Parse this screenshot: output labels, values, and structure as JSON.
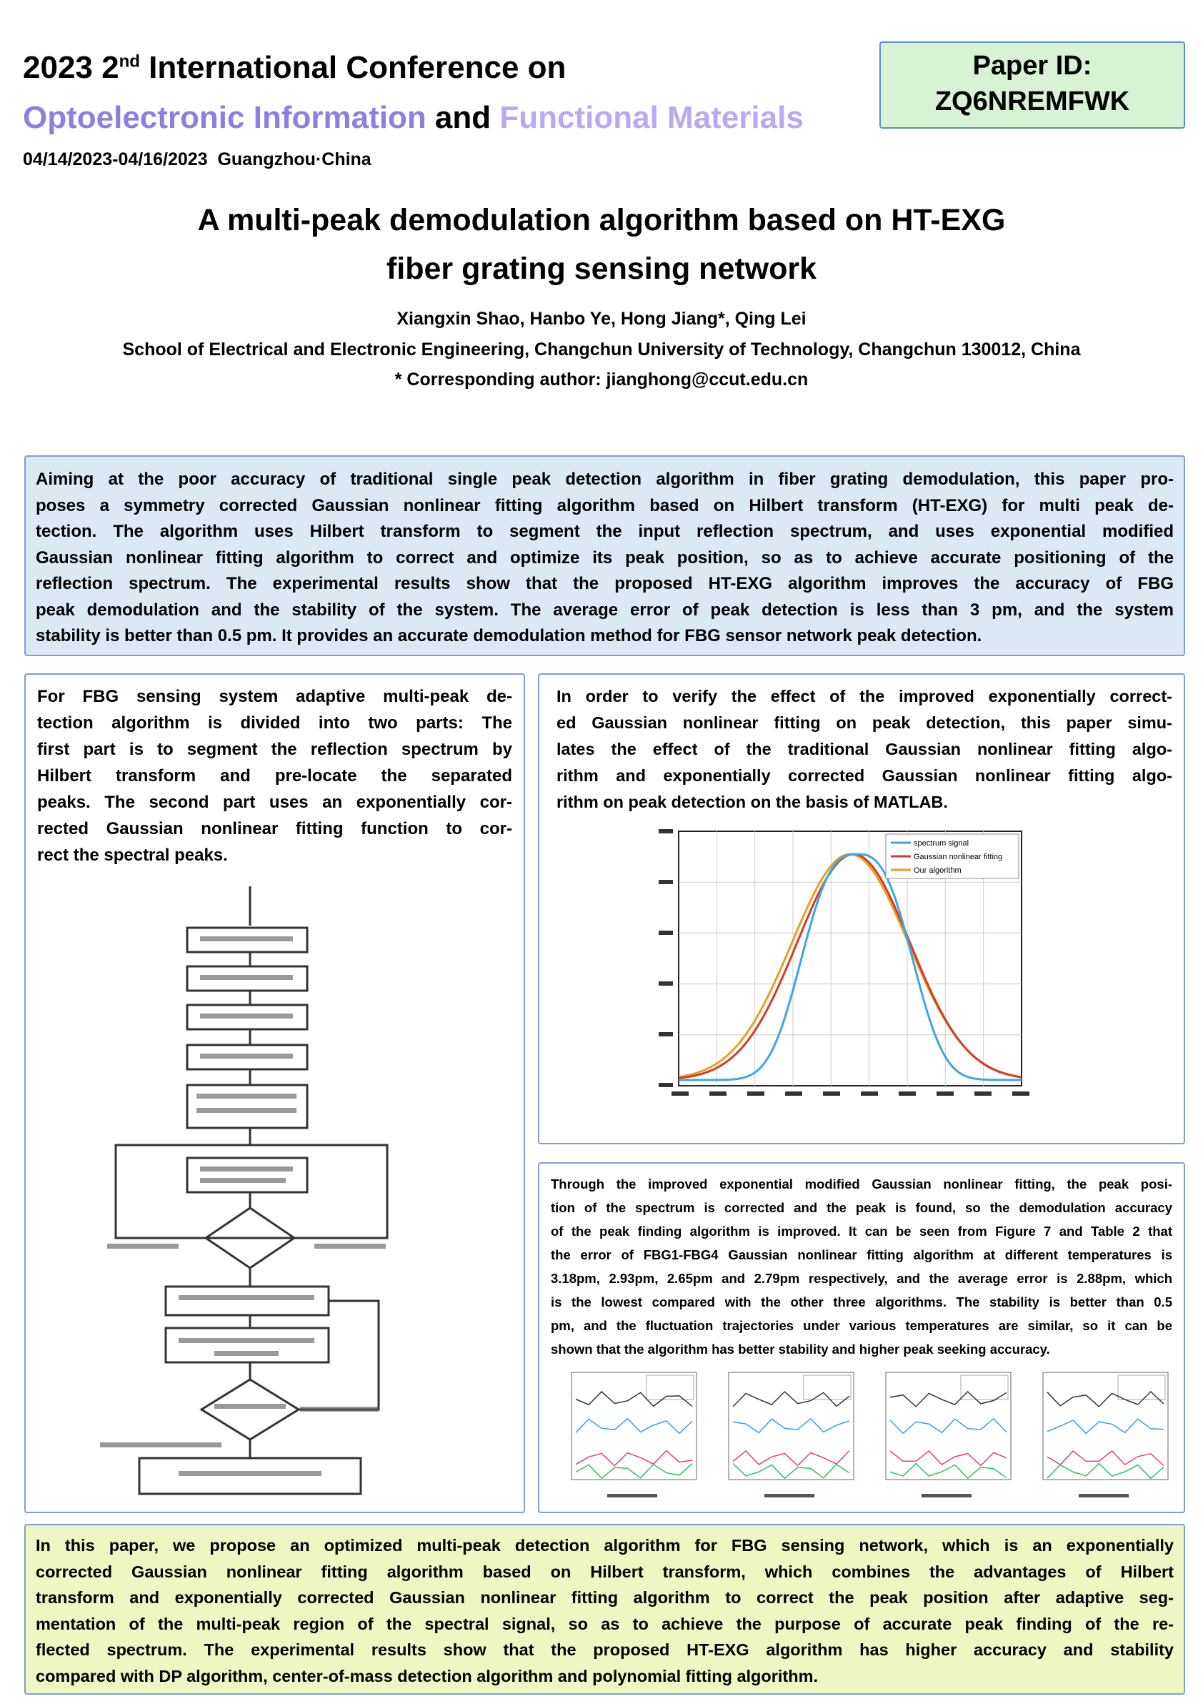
{
  "header": {
    "conference_line1": [
      "2023 2",
      "nd",
      " International Conference on"
    ],
    "conference_line2": [
      "Optoelectronic Information",
      " and ",
      "Functional Materials"
    ],
    "date_place": "04/14/2023-04/16/2023  Guangzhou·China",
    "paper_id_label": "Paper ID:",
    "paper_id": "ZQ6NREMFWK"
  },
  "paper": {
    "title_lines": [
      "A multi-peak demodulation algorithm based on HT-EXG",
      "fiber grating sensing network"
    ],
    "authors": "Xiangxin Shao, Hanbo Ye, Hong Jiang*, Qing Lei",
    "affiliation": "School of Electrical and Electronic Engineering, Changchun University of Technology, Changchun 130012, China",
    "corresponding": "* Corresponding author: jianghong@ccut.edu.cn"
  },
  "abstract": {
    "lines": [
      "Aiming at the poor accuracy of traditional single peak detection algorithm in fiber grating demodulation, this paper pro-",
      "poses a symmetry corrected Gaussian nonlinear fitting algorithm based on Hilbert transform (HT-EXG) for multi peak de-",
      "tection. The algorithm uses Hilbert transform to segment the input reflection spectrum, and uses exponential modified",
      "Gaussian nonlinear fitting algorithm to correct and optimize its peak position, so as to achieve accurate positioning of the",
      "reflection spectrum. The experimental results show that the proposed HT-EXG algorithm improves the accuracy of FBG",
      "peak demodulation and the stability of the system. The average error of peak detection is less than 3 pm, and the system",
      "stability is better than 0.5 pm. It provides an accurate demodulation method for FBG sensor network peak detection."
    ]
  },
  "method": {
    "lines": [
      "For FBG sensing system adaptive multi-peak de-",
      "tection algorithm is divided into two parts: The",
      "first part is to segment the reflection spectrum by",
      "Hilbert transform and pre-locate the separated",
      "peaks. The second part uses an exponentially cor-",
      "rected Gaussian nonlinear fitting function to cor-",
      "rect the spectral peaks."
    ]
  },
  "simulation": {
    "lines": [
      "In order to verify the effect of the improved exponentially correct-",
      "ed Gaussian nonlinear fitting on peak detection, this paper simu-",
      "lates the effect of the traditional Gaussian nonlinear fitting algo-",
      "rithm and exponentially corrected Gaussian nonlinear fitting algo-",
      "rithm on peak detection on the basis of MATLAB."
    ],
    "legend": [
      "spectrum signal",
      "Gaussian nonlinear fitting",
      "Our algorithm"
    ]
  },
  "results": {
    "lines": [
      "Through the improved exponential modified Gaussian nonlinear fitting, the peak posi-",
      "tion of the spectrum is corrected and the peak is found, so the demodulation accuracy",
      "of the peak finding algorithm is improved. It can be seen from Figure 7 and Table 2 that",
      "the error of FBG1-FBG4 Gaussian nonlinear fitting algorithm at different temperatures is",
      "3.18pm, 2.93pm, 2.65pm and 2.79pm respectively, and the average error is 2.88pm, which",
      "is the lowest compared with the other three algorithms. The stability is better than 0.5",
      "pm, and the fluctuation trajectories under various temperatures are similar, so it can be",
      "shown that the algorithm has better stability and higher peak seeking accuracy."
    ]
  },
  "conclusion": {
    "lines": [
      "In this paper, we propose an optimized multi-peak detection algorithm for FBG sensing network, which is an exponentially",
      "corrected Gaussian nonlinear fitting algorithm based on Hilbert transform, which combines the advantages of Hilbert",
      "transform and exponentially corrected Gaussian nonlinear fitting algorithm to correct the peak position after adaptive seg-",
      "mentation of the multi-peak region of the spectral signal, so as to achieve the purpose of accurate peak finding of the re-",
      "flected spectrum. The experimental results show that the proposed HT-EXG algorithm has higher accuracy and stability",
      "compared with DP algorithm, center-of-mass detection algorithm and polynomial fitting algorithm."
    ]
  }
}
